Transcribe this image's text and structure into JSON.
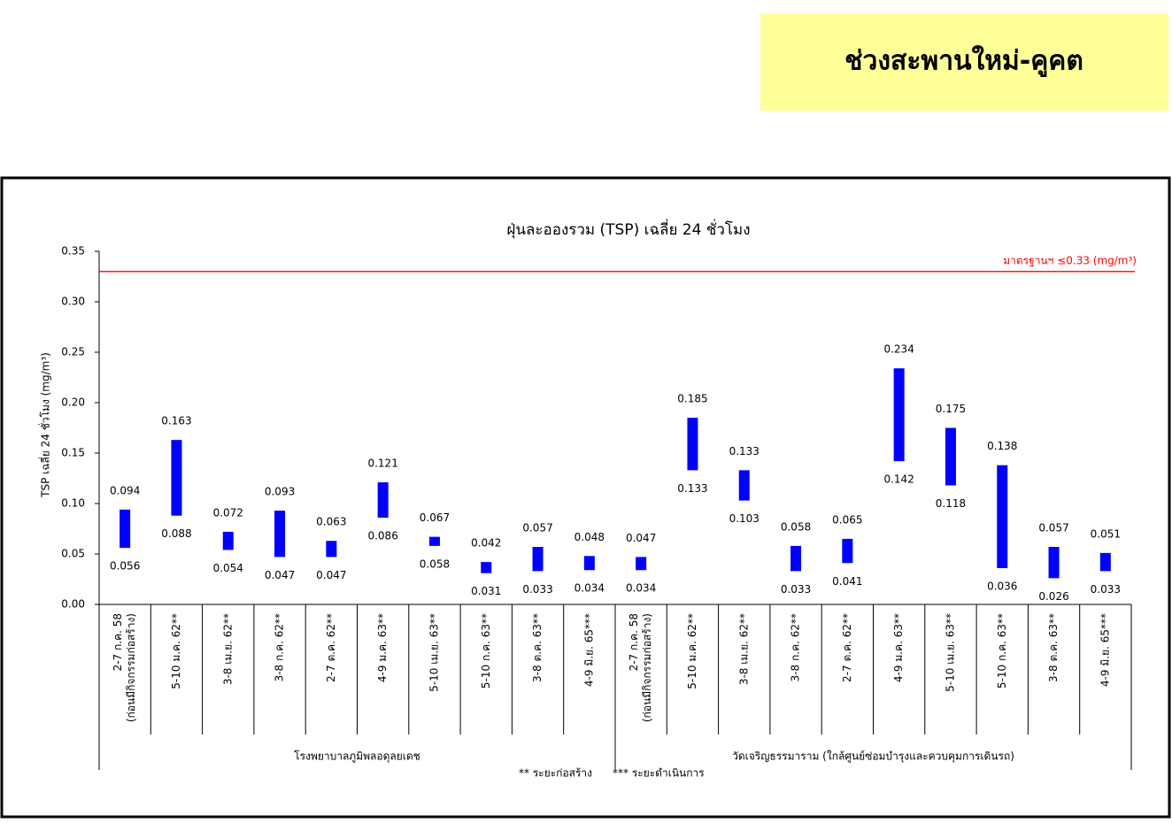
{
  "header": {
    "title": "ช่วงสะพานใหม่-คูคต"
  },
  "chart_data": {
    "type": "range-bar",
    "title": "ฝุ่นละอองรวม (TSP) เฉลี่ย 24 ชั่วโมง",
    "y_label": "TSP เฉลี่ย 24 ชั่วโมง (mg/m³)",
    "ylim": [
      0,
      0.35
    ],
    "yticks": [
      {
        "value": 0,
        "label": "0.00"
      },
      0.05,
      {
        "value": 0.1,
        "label": "0.10"
      },
      0.15,
      {
        "value": 0.2,
        "label": "0.20"
      },
      0.25,
      {
        "value": 0.3,
        "label": "0.30"
      },
      0.35
    ],
    "color": "#0000ff",
    "standard": {
      "value": 0.33,
      "label": "มาตรฐานฯ ≤0.33 (mg/m³)",
      "color": "#ff0000"
    },
    "groups": [
      {
        "label": "โรงพยาบาลภูมิพลอดุลยเดช",
        "categories": [
          [
            "2-7 ก.ค. 58",
            "(ก่อนมีกิจกรรมก่อสร้าง)"
          ],
          [
            "5-10 ม.ค. 62**"
          ],
          [
            "3-8 เม.ย. 62**"
          ],
          [
            "3-8 ก.ค. 62**"
          ],
          [
            "2-7 ต.ค. 62**"
          ],
          [
            "4-9 ม.ค. 63**"
          ],
          [
            "5-10 เม.ย. 63**"
          ],
          [
            "5-10 ก.ค. 63**"
          ],
          [
            "3-8 ต.ค. 63**"
          ],
          [
            "4-9 มิ.ย. 65***"
          ]
        ],
        "high": [
          0.094,
          0.163,
          0.072,
          0.093,
          0.063,
          0.121,
          0.067,
          0.042,
          0.057,
          0.048
        ],
        "low": [
          0.056,
          0.088,
          0.054,
          0.047,
          0.047,
          0.086,
          0.058,
          0.031,
          0.033,
          0.034
        ]
      },
      {
        "label": "วัดเจริญธรรมาราม (ใกล้ศูนย์ซ่อมบำรุงและควบคุมการเดินรถ)",
        "categories": [
          [
            "2-7 ก.ค. 58",
            "(ก่อนมีกิจกรรมก่อสร้าง)"
          ],
          [
            "5-10 ม.ค. 62**"
          ],
          [
            "3-8 เม.ย. 62**"
          ],
          [
            "3-8 ก.ค. 62**"
          ],
          [
            "2-7 ต.ค. 62**"
          ],
          [
            "4-9 ม.ค. 63**"
          ],
          [
            "5-10 เม.ย. 63**"
          ],
          [
            "5-10 ก.ค. 63**"
          ],
          [
            "3-8 ต.ค. 63**"
          ],
          [
            "4-9 มิ.ย. 65***"
          ]
        ],
        "high": [
          0.047,
          0.185,
          0.133,
          0.058,
          0.065,
          0.234,
          0.175,
          0.138,
          0.057,
          0.051
        ],
        "low": [
          0.034,
          0.133,
          0.103,
          0.033,
          0.041,
          0.142,
          0.118,
          0.036,
          0.026,
          0.033
        ]
      }
    ],
    "notes": [
      "** ระยะก่อสร้าง",
      "*** ระยะดำเนินการ"
    ]
  }
}
